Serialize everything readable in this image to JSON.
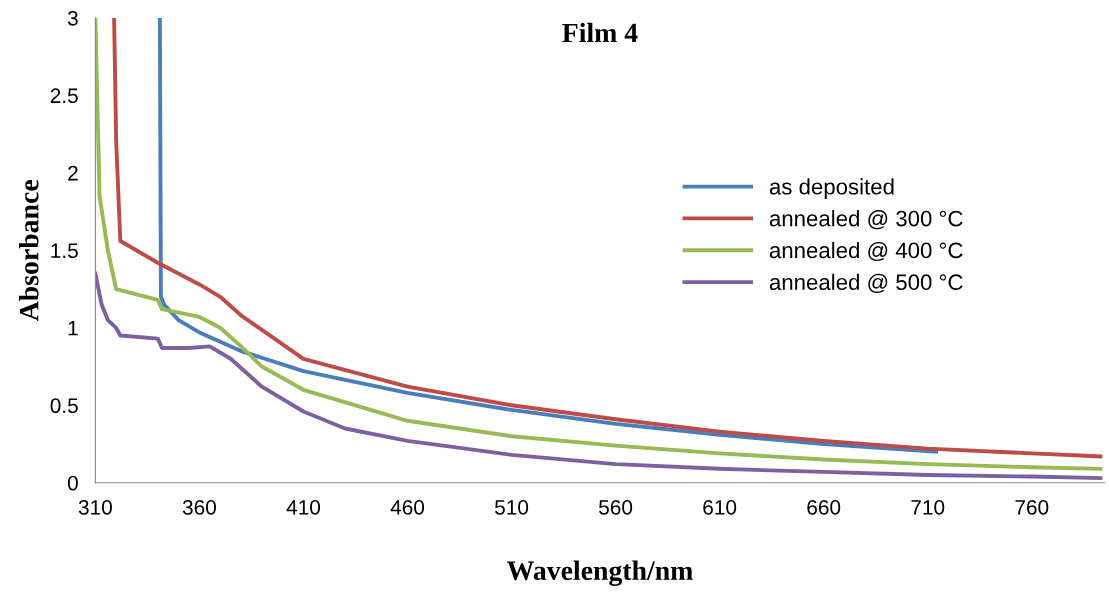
{
  "chart_data": {
    "type": "line",
    "title": "Film 4",
    "xlabel": "Wavelength/nm",
    "ylabel": "Absorbance",
    "xlim": [
      310,
      795
    ],
    "ylim": [
      0,
      3
    ],
    "xticks": [
      310,
      360,
      410,
      460,
      510,
      560,
      610,
      660,
      710,
      760
    ],
    "yticks": [
      0,
      0.5,
      1,
      1.5,
      2,
      2.5,
      3
    ],
    "grid": false,
    "legend": "right",
    "line_style": "solid",
    "marker": "none",
    "series": [
      {
        "name": "as deposited",
        "color": "#4a7ebb",
        "x": [
          341,
          341.5,
          343,
          350,
          360,
          380,
          410,
          460,
          510,
          560,
          610,
          660,
          714
        ],
        "values": [
          3,
          1.2,
          1.15,
          1.05,
          0.97,
          0.85,
          0.72,
          0.58,
          0.47,
          0.38,
          0.31,
          0.25,
          0.2
        ]
      },
      {
        "name": "annealed @ 300 °C",
        "color": "#be4b48",
        "x": [
          319,
          320,
          322,
          340,
          360,
          370,
          380,
          410,
          460,
          510,
          560,
          610,
          660,
          710,
          760,
          793
        ],
        "values": [
          3,
          2.2,
          1.56,
          1.42,
          1.28,
          1.2,
          1.08,
          0.8,
          0.62,
          0.5,
          0.41,
          0.33,
          0.27,
          0.22,
          0.19,
          0.17
        ]
      },
      {
        "name": "annealed @ 400 °C",
        "color": "#98b954",
        "x": [
          310,
          312,
          316,
          320,
          340,
          342,
          360,
          370,
          380,
          390,
          410,
          460,
          510,
          560,
          610,
          660,
          710,
          760,
          793
        ],
        "values": [
          3,
          1.85,
          1.5,
          1.25,
          1.18,
          1.12,
          1.07,
          1.0,
          0.88,
          0.75,
          0.6,
          0.4,
          0.3,
          0.24,
          0.19,
          0.15,
          0.12,
          0.1,
          0.09
        ]
      },
      {
        "name": "annealed @ 500 °C",
        "color": "#7d60a0",
        "x": [
          310,
          313,
          316,
          320,
          322,
          340,
          342,
          355,
          365,
          375,
          390,
          410,
          430,
          460,
          510,
          560,
          610,
          660,
          710,
          760,
          793
        ],
        "values": [
          1.35,
          1.15,
          1.05,
          1.0,
          0.95,
          0.93,
          0.87,
          0.87,
          0.88,
          0.8,
          0.62,
          0.46,
          0.35,
          0.27,
          0.18,
          0.12,
          0.09,
          0.07,
          0.05,
          0.04,
          0.03
        ]
      }
    ]
  }
}
